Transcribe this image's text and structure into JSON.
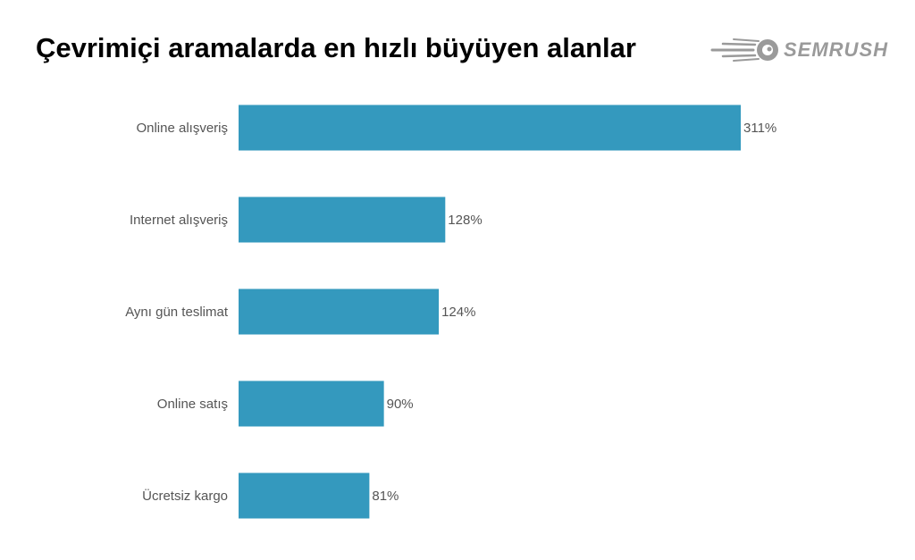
{
  "title": "Çevrimiçi aramalarda en hızlı büyüyen alanlar",
  "logo": {
    "text": "SEMRUSH",
    "icon": "semrush-fireball-icon",
    "color": "#9a9a9a"
  },
  "colors": {
    "bar": "#3499be",
    "text": "#555555"
  },
  "chart_data": {
    "type": "bar",
    "orientation": "horizontal",
    "title": "Çevrimiçi aramalarda en hızlı büyüyen alanlar",
    "xlabel": "",
    "ylabel": "",
    "categories": [
      "Online alışveriş",
      "Internet alışveriş",
      "Aynı gün teslimat",
      "Online satış",
      "Ücretsiz kargo"
    ],
    "values": [
      311,
      128,
      124,
      90,
      81
    ],
    "value_labels": [
      "311%",
      "128%",
      "124%",
      "90%",
      "81%"
    ],
    "unit": "%",
    "grid": false,
    "legend": "none"
  }
}
